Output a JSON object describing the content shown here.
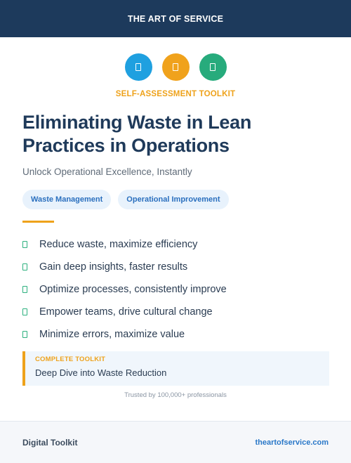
{
  "header": {
    "title": "THE ART OF SERVICE"
  },
  "icons": [
    {
      "name": "document-icon",
      "color": "#1fa0e0"
    },
    {
      "name": "document-icon",
      "color": "#f0a21c"
    },
    {
      "name": "document-icon",
      "color": "#27ab7c"
    }
  ],
  "eyebrow": "SELF-ASSESSMENT TOOLKIT",
  "title": "Eliminating Waste in Lean Practices in Operations",
  "subtitle": "Unlock Operational Excellence, Instantly",
  "tags": [
    "Waste Management",
    "Operational Improvement"
  ],
  "benefits": [
    "Reduce waste, maximize efficiency",
    "Gain deep insights, faster results",
    "Optimize processes, consistently improve",
    "Empower teams, drive cultural change",
    "Minimize errors, maximize value"
  ],
  "callout": {
    "label": "COMPLETE TOOLKIT",
    "text": "Deep Dive into Waste Reduction"
  },
  "trust": "Trusted by 100,000+ professionals",
  "footer": {
    "left": "Digital Toolkit",
    "right": "theartofservice.com"
  },
  "colors": {
    "navy": "#1d3a5c",
    "accent": "#eea21b",
    "check": "#2cb07e",
    "link": "#2a78c8"
  }
}
